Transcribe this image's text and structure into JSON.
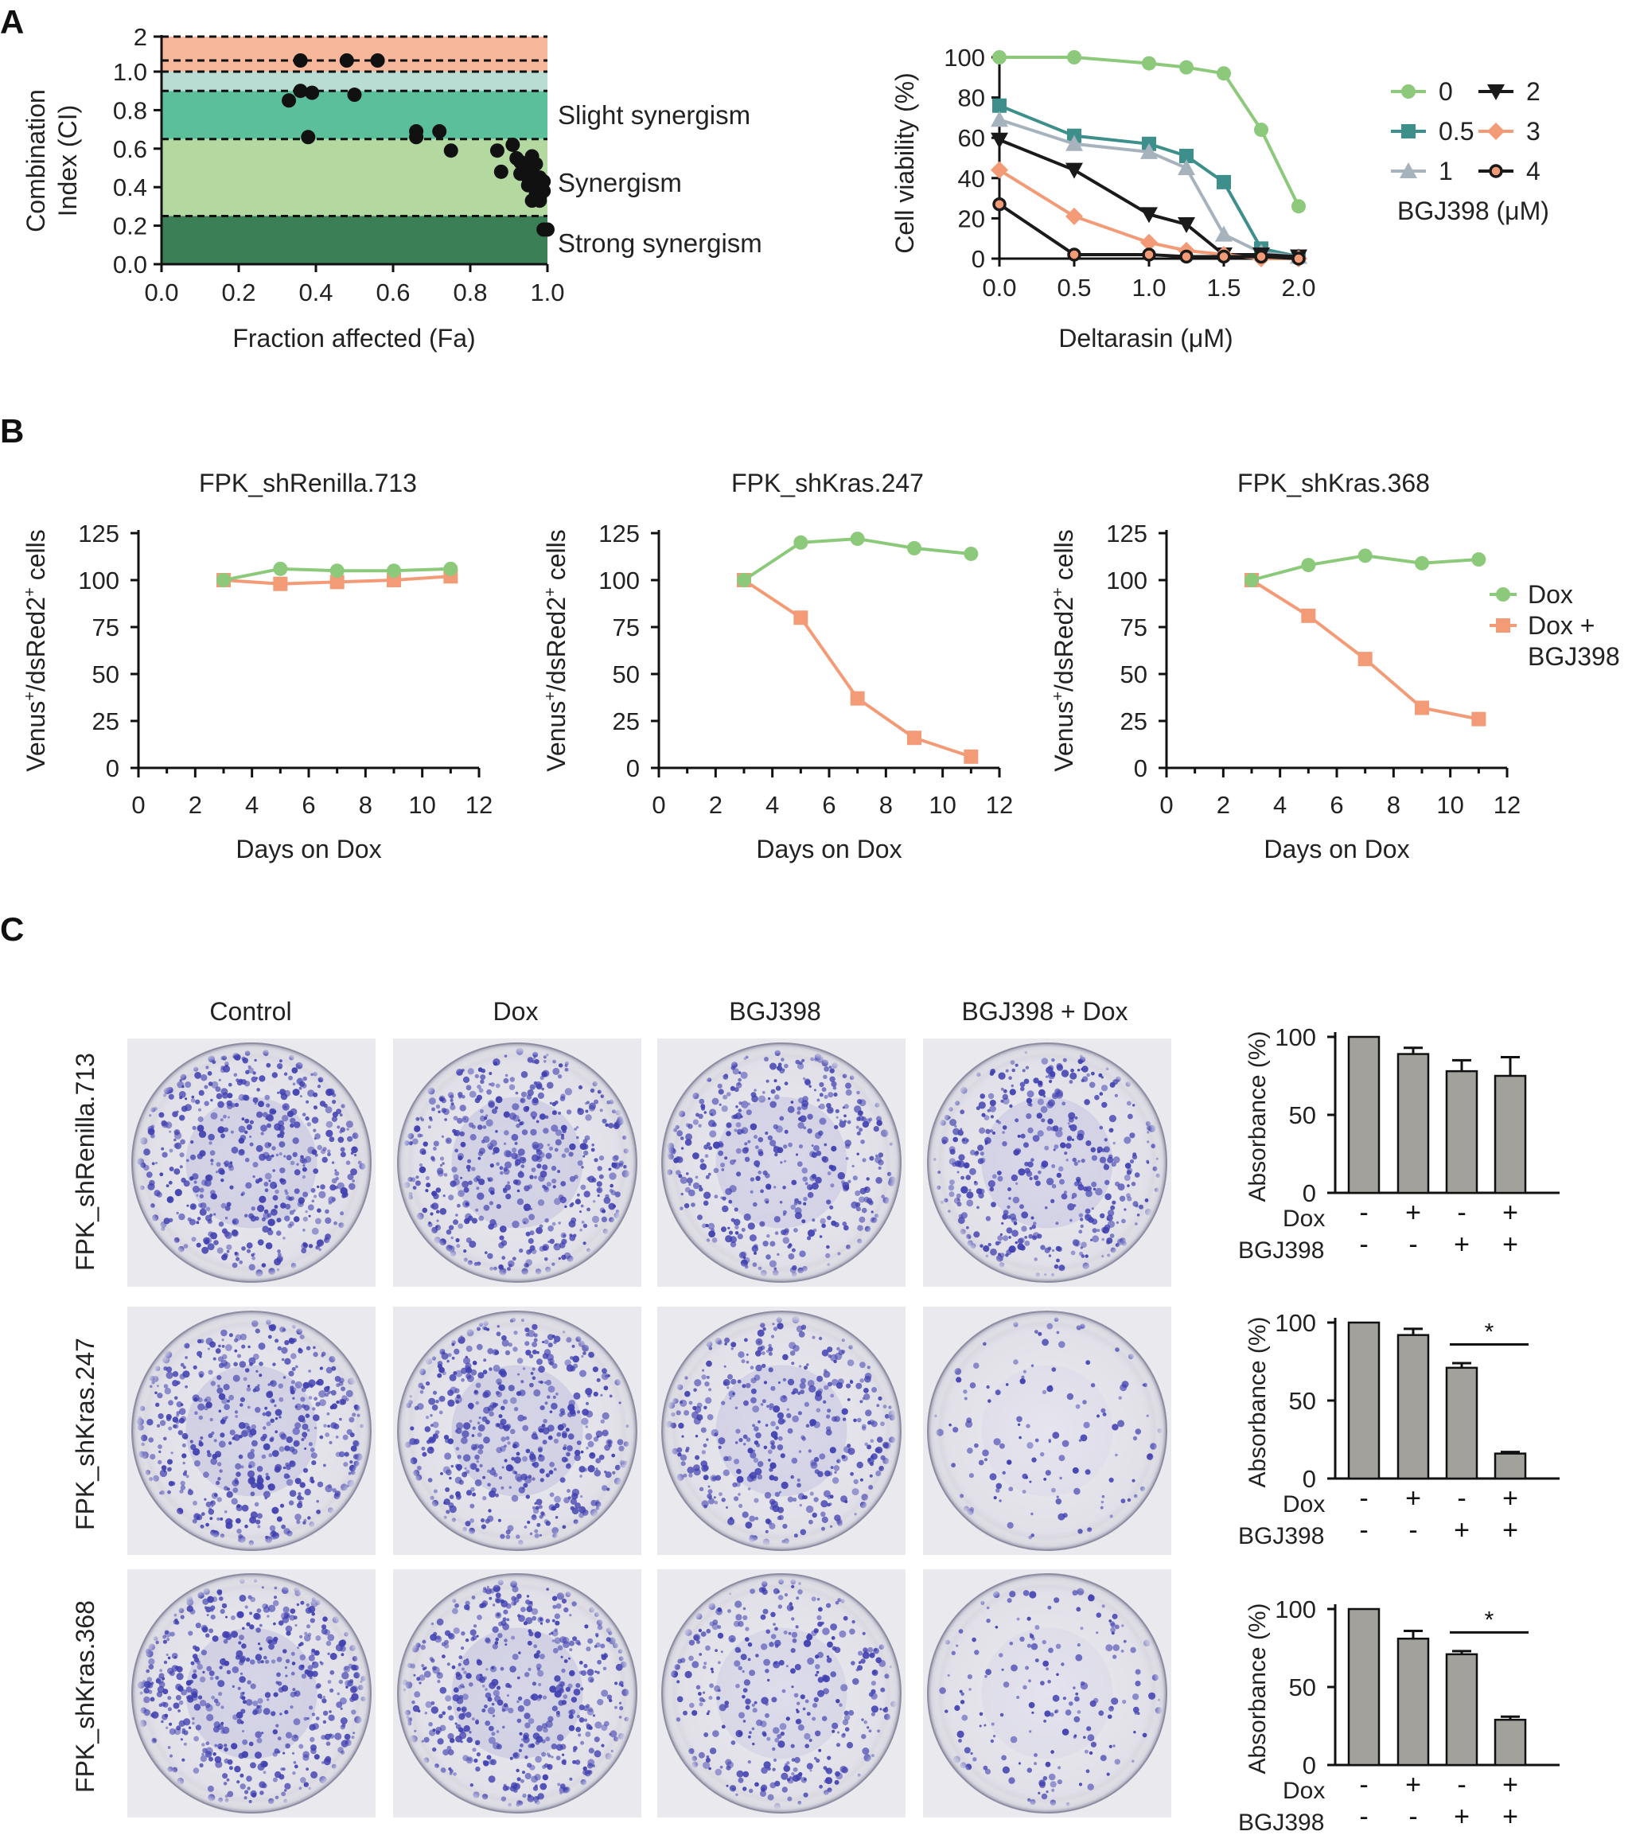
{
  "panels": {
    "A": "A",
    "B": "B",
    "C": "C"
  },
  "colors": {
    "dox": "#8cc97a",
    "dox_bgj": "#f39b77",
    "bar": "#a3a19c",
    "antagonism": "#f7b79a",
    "additive": "#b9ddd2",
    "slight": "#5bbf9b",
    "synergism": "#b3d9a1",
    "strong": "#3b7f57",
    "bgj0": "#8cc97a",
    "bgj05": "#3c8f8a",
    "bgj1": "#a6b3bd",
    "bgj2": "#1a1a1a",
    "bgj3": "#f39b77",
    "bgj4": "#1a1a1a",
    "plate_stain": "#3f3fb0"
  },
  "panel_a_left": {
    "y_ticks": [
      "0.0",
      "0.2",
      "0.4",
      "0.6",
      "0.8",
      "1.0",
      "2"
    ],
    "x_ticks": [
      "0.0",
      "0.2",
      "0.4",
      "0.6",
      "0.8",
      "1.0"
    ],
    "ylabel_line1": "Combination",
    "ylabel_line2": "Index (CI)",
    "xlabel": "Fraction affected (Fa)",
    "zone_labels": {
      "slight": "Slight synergism",
      "synergism": "Synergism",
      "strong": "Strong synergism"
    }
  },
  "panel_a_right": {
    "y_ticks": [
      "0",
      "20",
      "40",
      "60",
      "80",
      "100"
    ],
    "x_ticks": [
      "0.0",
      "0.5",
      "1.0",
      "1.5",
      "2.0"
    ],
    "ylabel": "Cell viability (%)",
    "xlabel": "Deltarasin (μM)",
    "legend_title": "BGJ398 (μM)",
    "legend_labels": [
      "0",
      "0.5",
      "1",
      "2",
      "3",
      "4"
    ]
  },
  "panel_b": {
    "titles": [
      "FPK_shRenilla.713",
      "FPK_shKras.247",
      "FPK_shKras.368"
    ],
    "ylabel_main": "Venus",
    "ylabel_mid": "/dsRed2",
    "ylabel_end": " cells",
    "sup": "+",
    "xlabel": "Days on Dox",
    "y_ticks": [
      "0",
      "25",
      "50",
      "75",
      "100",
      "125"
    ],
    "x_ticks": [
      "0",
      "2",
      "4",
      "6",
      "8",
      "10",
      "12"
    ],
    "legend": [
      "Dox",
      "Dox +",
      "BGJ398"
    ]
  },
  "panel_c": {
    "columns": [
      "Control",
      "Dox",
      "BGJ398",
      "BGJ398 + Dox"
    ],
    "rows": [
      "FPK_shRenilla.713",
      "FPK_shKras.247",
      "FPK_shKras.368"
    ],
    "bar_ylabel": "Absorbance (%)",
    "bar_y_ticks": [
      "0",
      "50",
      "100"
    ],
    "row_labels": [
      "Dox",
      "BGJ398"
    ],
    "dox_signs": [
      "-",
      "+",
      "-",
      "+"
    ],
    "bgj_signs": [
      "-",
      "-",
      "+",
      "+"
    ],
    "significance": "*"
  },
  "chart_data": [
    {
      "type": "scatter",
      "panel": "A-left",
      "xlabel": "Fraction affected (Fa)",
      "ylabel": "Combination Index (CI)",
      "xlim": [
        0,
        1
      ],
      "ylim": [
        0,
        2
      ],
      "y_axis_break": "broken scale above 1.0",
      "zones": [
        {
          "name": "Strong synergism",
          "from": 0,
          "to": 0.25
        },
        {
          "name": "Synergism",
          "from": 0.25,
          "to": 0.65
        },
        {
          "name": "Slight synergism",
          "from": 0.65,
          "to": 0.9
        },
        {
          "name": "",
          "from": 0.9,
          "to": 1.0
        },
        {
          "name": "",
          "from": 1.0,
          "to": 2.0
        }
      ],
      "points": [
        [
          0.33,
          0.85
        ],
        [
          0.36,
          0.9
        ],
        [
          0.38,
          0.66
        ],
        [
          0.39,
          0.89
        ],
        [
          0.5,
          0.88
        ],
        [
          0.36,
          1.1
        ],
        [
          0.48,
          1.1
        ],
        [
          0.56,
          1.1
        ],
        [
          0.66,
          0.69
        ],
        [
          0.66,
          0.66
        ],
        [
          0.72,
          0.69
        ],
        [
          0.75,
          0.59
        ],
        [
          0.87,
          0.59
        ],
        [
          0.88,
          0.48
        ],
        [
          0.91,
          0.62
        ],
        [
          0.92,
          0.55
        ],
        [
          0.93,
          0.53
        ],
        [
          0.93,
          0.47
        ],
        [
          0.94,
          0.51
        ],
        [
          0.95,
          0.45
        ],
        [
          0.95,
          0.41
        ],
        [
          0.96,
          0.56
        ],
        [
          0.96,
          0.46
        ],
        [
          0.97,
          0.52
        ],
        [
          0.97,
          0.43
        ],
        [
          0.97,
          0.39
        ],
        [
          0.97,
          0.36
        ],
        [
          0.98,
          0.45
        ],
        [
          0.98,
          0.35
        ],
        [
          0.98,
          0.33
        ],
        [
          0.99,
          0.43
        ],
        [
          0.99,
          0.38
        ],
        [
          0.99,
          0.18
        ],
        [
          1.0,
          0.18
        ],
        [
          0.96,
          0.33
        ]
      ]
    },
    {
      "type": "line",
      "panel": "A-right",
      "xlabel": "Deltarasin (μM)",
      "ylabel": "Cell viability (%)",
      "xlim": [
        0,
        2
      ],
      "ylim": [
        0,
        100
      ],
      "legend_title": "BGJ398 (μM)",
      "x": [
        0,
        0.5,
        1.0,
        1.25,
        1.5,
        1.75,
        2.0
      ],
      "series": [
        {
          "name": "0",
          "values": [
            100,
            100,
            97,
            95,
            92,
            64,
            26
          ]
        },
        {
          "name": "0.5",
          "values": [
            76,
            61,
            57,
            51,
            38,
            5,
            1
          ]
        },
        {
          "name": "1",
          "values": [
            69,
            57,
            53,
            45,
            12,
            3,
            1
          ]
        },
        {
          "name": "2",
          "values": [
            59,
            44,
            22,
            17,
            2,
            2,
            1
          ]
        },
        {
          "name": "3",
          "values": [
            44,
            21,
            8,
            4,
            2,
            0,
            0
          ]
        },
        {
          "name": "4",
          "values": [
            27,
            2,
            2,
            1,
            1,
            1,
            0
          ]
        }
      ]
    },
    {
      "type": "line",
      "panel": "B",
      "title": "FPK_shRenilla.713",
      "xlabel": "Days on Dox",
      "xlim": [
        0,
        12
      ],
      "ylim": [
        0,
        125
      ],
      "x": [
        3,
        5,
        7,
        9,
        11
      ],
      "series": [
        {
          "name": "Dox",
          "values": [
            100,
            106,
            105,
            105,
            106
          ]
        },
        {
          "name": "Dox + BGJ398",
          "values": [
            100,
            98,
            99,
            100,
            102
          ]
        }
      ]
    },
    {
      "type": "line",
      "panel": "B",
      "title": "FPK_shKras.247",
      "xlabel": "Days on Dox",
      "xlim": [
        0,
        12
      ],
      "ylim": [
        0,
        125
      ],
      "x": [
        3,
        5,
        7,
        9,
        11
      ],
      "series": [
        {
          "name": "Dox",
          "values": [
            100,
            120,
            122,
            117,
            114
          ]
        },
        {
          "name": "Dox + BGJ398",
          "values": [
            100,
            80,
            37,
            16,
            6
          ]
        }
      ]
    },
    {
      "type": "line",
      "panel": "B",
      "title": "FPK_shKras.368",
      "xlabel": "Days on Dox",
      "xlim": [
        0,
        12
      ],
      "ylim": [
        0,
        125
      ],
      "x": [
        3,
        5,
        7,
        9,
        11
      ],
      "series": [
        {
          "name": "Dox",
          "values": [
            100,
            108,
            113,
            109,
            111
          ]
        },
        {
          "name": "Dox + BGJ398",
          "values": [
            100,
            81,
            58,
            32,
            26
          ]
        }
      ]
    },
    {
      "type": "bar",
      "panel": "C",
      "row": "FPK_shRenilla.713",
      "ylabel": "Absorbance (%)",
      "ylim": [
        0,
        100
      ],
      "values": [
        100,
        89,
        78,
        75
      ],
      "errors": [
        0,
        4,
        7,
        12
      ],
      "significant_pair": null
    },
    {
      "type": "bar",
      "panel": "C",
      "row": "FPK_shKras.247",
      "ylabel": "Absorbance (%)",
      "ylim": [
        0,
        100
      ],
      "values": [
        100,
        92,
        71,
        16
      ],
      "errors": [
        0,
        4,
        3,
        1
      ],
      "significant_pair": [
        2,
        3
      ]
    },
    {
      "type": "bar",
      "panel": "C",
      "row": "FPK_shKras.368",
      "ylabel": "Absorbance (%)",
      "ylim": [
        0,
        100
      ],
      "values": [
        100,
        81,
        71,
        29
      ],
      "errors": [
        0,
        5,
        2,
        2
      ],
      "significant_pair": [
        2,
        3
      ]
    }
  ]
}
